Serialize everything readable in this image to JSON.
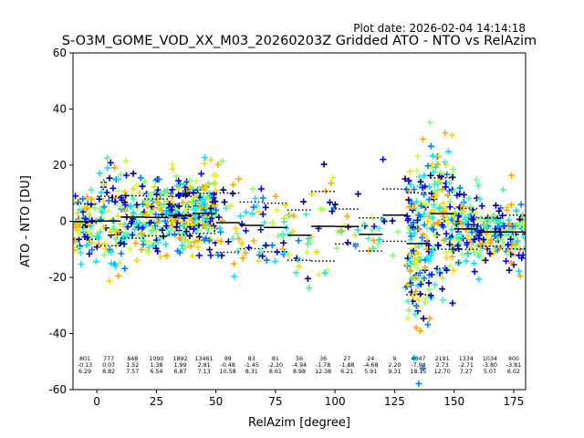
{
  "plot_date": "Plot date: 2026-02-04 14:14:18",
  "chart_data": {
    "type": "scatter",
    "title": "S-O3M_GOME_VOD_XX_M03_20260203Z Gridded ATO - NTO vs RelAzim",
    "xlabel": "RelAzim [degree]",
    "ylabel": "ATO - NTO [DU]",
    "xlim": [
      -10,
      180
    ],
    "ylim": [
      -60,
      60
    ],
    "xticks": [
      0,
      25,
      50,
      75,
      100,
      125,
      150,
      175
    ],
    "yticks": [
      -60,
      -40,
      -20,
      0,
      20,
      40,
      60
    ],
    "bins": [
      {
        "x0": -10,
        "x1": 0,
        "count": "801",
        "mean": "-0.13",
        "std": "6.29"
      },
      {
        "x0": 0,
        "x1": 10,
        "count": "777",
        "mean": "0.07",
        "std": "8.82"
      },
      {
        "x0": 10,
        "x1": 20,
        "count": "848",
        "mean": "1.52",
        "std": "7.57"
      },
      {
        "x0": 20,
        "x1": 30,
        "count": "1090",
        "mean": "1.38",
        "std": "6.54"
      },
      {
        "x0": 30,
        "x1": 40,
        "count": "1892",
        "mean": "1.99",
        "std": "6.87"
      },
      {
        "x0": 40,
        "x1": 50,
        "count": "13461",
        "mean": "2.81",
        "std": "7.13"
      },
      {
        "x0": 50,
        "x1": 60,
        "count": "99",
        "mean": "-0.48",
        "std": "10.58"
      },
      {
        "x0": 60,
        "x1": 70,
        "count": "83",
        "mean": "-1.45",
        "std": "8.31"
      },
      {
        "x0": 70,
        "x1": 80,
        "count": "81",
        "mean": "-2.20",
        "std": "8.61"
      },
      {
        "x0": 80,
        "x1": 90,
        "count": "56",
        "mean": "-4.94",
        "std": "8.98"
      },
      {
        "x0": 90,
        "x1": 100,
        "count": "36",
        "mean": "-1.78",
        "std": "12.38"
      },
      {
        "x0": 100,
        "x1": 110,
        "count": "27",
        "mean": "-1.88",
        "std": "6.21"
      },
      {
        "x0": 110,
        "x1": 120,
        "count": "24",
        "mean": "-4.68",
        "std": "5.91"
      },
      {
        "x0": 120,
        "x1": 130,
        "count": "9",
        "mean": "2.20",
        "std": "9.31"
      },
      {
        "x0": 130,
        "x1": 140,
        "count": "4047",
        "mean": "-7.98",
        "std": "18.15"
      },
      {
        "x0": 140,
        "x1": 150,
        "count": "2191",
        "mean": "2.73",
        "std": "12.70"
      },
      {
        "x0": 150,
        "x1": 160,
        "count": "1334",
        "mean": "-2.71",
        "std": "7.27"
      },
      {
        "x0": 160,
        "x1": 170,
        "count": "1034",
        "mean": "-3.80",
        "std": "5.07"
      },
      {
        "x0": 170,
        "x1": 180,
        "count": "900",
        "mean": "-3.81",
        "std": "6.02"
      }
    ],
    "marker_colors": [
      "#00008b",
      "#0000ff",
      "#0080ff",
      "#00e5ff",
      "#40f0c0",
      "#7fff7f",
      "#c8ff40",
      "#ffd700",
      "#ffa500"
    ],
    "grid": false,
    "legend": "none"
  }
}
